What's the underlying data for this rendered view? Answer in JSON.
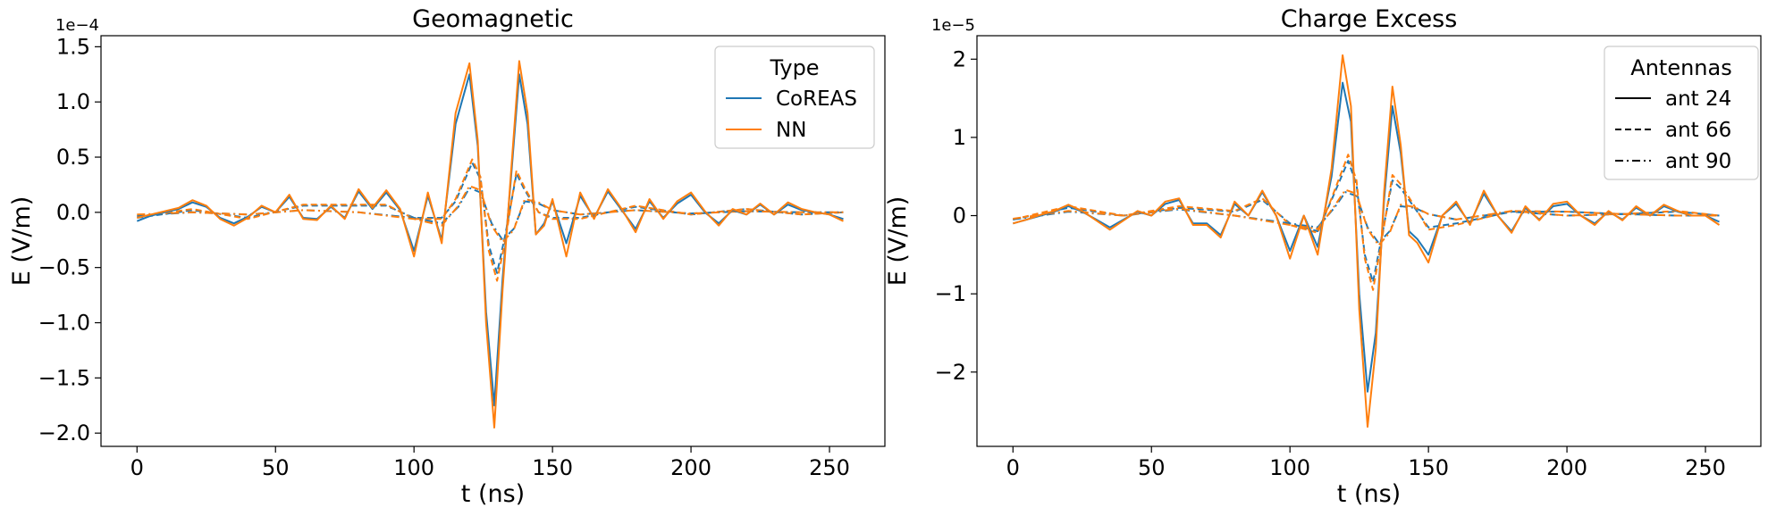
{
  "chart_data": [
    {
      "type": "line",
      "title": "Geomagnetic",
      "xlabel": "t (ns)",
      "ylabel": "E (V/m)",
      "y_scale_label": "1e−4",
      "y_scale": 0.0001,
      "xlim": [
        -13,
        270
      ],
      "ylim": [
        -2.12,
        1.6
      ],
      "xticks": [
        0,
        50,
        100,
        150,
        200,
        250
      ],
      "xtick_labels": [
        "0",
        "50",
        "100",
        "150",
        "200",
        "250"
      ],
      "yticks": [
        -2.0,
        -1.5,
        -1.0,
        -0.5,
        0.0,
        0.5,
        1.0,
        1.5
      ],
      "ytick_labels": [
        "−2.0",
        "−1.5",
        "−1.0",
        "−0.5",
        "0.0",
        "0.5",
        "1.0",
        "1.5"
      ],
      "grid": false,
      "legend": {
        "title": "Type",
        "placement": "top-right",
        "entries": [
          "CoREAS",
          "NN"
        ]
      },
      "series": [
        {
          "group": "CoREAS",
          "antenna": "ant 24",
          "style": "solid",
          "color": "#1f77b4",
          "x": [
            0,
            5,
            10,
            15,
            20,
            25,
            30,
            35,
            40,
            45,
            50,
            55,
            60,
            65,
            70,
            75,
            80,
            85,
            90,
            95,
            100,
            105,
            110,
            115,
            120,
            123,
            126,
            129,
            132,
            135,
            138,
            141,
            144,
            147,
            150,
            155,
            160,
            165,
            170,
            175,
            180,
            185,
            190,
            195,
            200,
            205,
            210,
            215,
            220,
            225,
            230,
            235,
            240,
            245,
            250,
            255
          ],
          "y": [
            -0.08,
            -0.03,
            0.0,
            0.03,
            0.09,
            0.05,
            -0.05,
            -0.1,
            -0.04,
            0.05,
            0.0,
            0.14,
            -0.05,
            -0.06,
            0.05,
            -0.05,
            0.19,
            0.03,
            0.18,
            0.02,
            -0.35,
            0.15,
            -0.25,
            0.8,
            1.25,
            0.6,
            -0.9,
            -1.75,
            -0.6,
            0.3,
            1.25,
            0.8,
            -0.2,
            -0.1,
            0.1,
            -0.28,
            0.15,
            -0.05,
            0.19,
            0.02,
            -0.15,
            0.1,
            -0.05,
            0.08,
            0.16,
            0.0,
            -0.1,
            0.02,
            -0.02,
            0.07,
            -0.02,
            0.07,
            0.02,
            0.0,
            -0.02,
            -0.06
          ]
        },
        {
          "group": "NN",
          "antenna": "ant 24",
          "style": "solid",
          "color": "#ff7f0e",
          "x": [
            0,
            5,
            10,
            15,
            20,
            25,
            30,
            35,
            40,
            45,
            50,
            55,
            60,
            65,
            70,
            75,
            80,
            85,
            90,
            95,
            100,
            105,
            110,
            115,
            120,
            123,
            126,
            129,
            132,
            135,
            138,
            141,
            144,
            147,
            150,
            155,
            160,
            165,
            170,
            175,
            180,
            185,
            190,
            195,
            200,
            205,
            210,
            215,
            220,
            225,
            230,
            235,
            240,
            245,
            250,
            255
          ],
          "y": [
            -0.05,
            -0.02,
            0.01,
            0.04,
            0.11,
            0.06,
            -0.06,
            -0.12,
            -0.05,
            0.06,
            0.0,
            0.16,
            -0.06,
            -0.07,
            0.06,
            -0.06,
            0.21,
            0.04,
            0.2,
            0.03,
            -0.4,
            0.18,
            -0.28,
            0.9,
            1.35,
            0.65,
            -1.0,
            -1.95,
            -0.7,
            0.35,
            1.37,
            0.9,
            -0.2,
            -0.12,
            0.12,
            -0.4,
            0.18,
            -0.06,
            0.21,
            0.03,
            -0.18,
            0.12,
            -0.06,
            0.1,
            0.18,
            0.01,
            -0.12,
            0.03,
            -0.02,
            0.08,
            -0.02,
            0.09,
            0.03,
            0.0,
            -0.02,
            -0.08
          ]
        },
        {
          "group": "CoREAS",
          "antenna": "ant 66",
          "style": "dashed",
          "color": "#1f77b4",
          "x": [
            0,
            20,
            40,
            60,
            80,
            90,
            100,
            110,
            115,
            121,
            124,
            127,
            130,
            133,
            137,
            140,
            145,
            150,
            160,
            180,
            200,
            220,
            240,
            255
          ],
          "y": [
            -0.05,
            0.02,
            -0.05,
            0.06,
            0.06,
            0.06,
            -0.05,
            -0.05,
            0.1,
            0.45,
            0.3,
            -0.3,
            -0.55,
            -0.2,
            0.35,
            0.2,
            0.0,
            -0.05,
            -0.05,
            0.05,
            -0.02,
            0.03,
            -0.02,
            0.0
          ]
        },
        {
          "group": "NN",
          "antenna": "ant 66",
          "style": "dashed",
          "color": "#ff7f0e",
          "x": [
            0,
            20,
            40,
            60,
            80,
            90,
            100,
            110,
            115,
            121,
            124,
            127,
            130,
            133,
            137,
            140,
            145,
            150,
            160,
            180,
            200,
            220,
            240,
            255
          ],
          "y": [
            -0.04,
            0.03,
            -0.06,
            0.07,
            0.07,
            0.07,
            -0.06,
            -0.06,
            0.12,
            0.48,
            0.32,
            -0.35,
            -0.62,
            -0.25,
            0.38,
            0.22,
            0.0,
            -0.06,
            -0.06,
            0.06,
            -0.02,
            0.03,
            -0.02,
            0.0
          ]
        },
        {
          "group": "CoREAS",
          "antenna": "ant 90",
          "style": "dashdot",
          "color": "#1f77b4",
          "x": [
            0,
            20,
            40,
            60,
            80,
            100,
            110,
            116,
            120,
            124,
            128,
            132,
            136,
            140,
            145,
            150,
            160,
            180,
            200,
            220,
            240,
            255
          ],
          "y": [
            -0.03,
            0.0,
            -0.02,
            0.02,
            0.0,
            -0.05,
            -0.1,
            0.05,
            0.22,
            0.18,
            -0.1,
            -0.25,
            -0.15,
            0.1,
            0.08,
            0.02,
            -0.02,
            0.02,
            -0.01,
            0.01,
            0.0,
            0.0
          ]
        },
        {
          "group": "NN",
          "antenna": "ant 90",
          "style": "dashdot",
          "color": "#ff7f0e",
          "x": [
            0,
            20,
            40,
            60,
            80,
            100,
            110,
            116,
            120,
            124,
            128,
            132,
            136,
            140,
            145,
            150,
            160,
            180,
            200,
            220,
            240,
            255
          ],
          "y": [
            -0.02,
            0.0,
            -0.02,
            0.02,
            0.0,
            -0.06,
            -0.12,
            0.06,
            0.24,
            0.2,
            -0.12,
            -0.27,
            -0.16,
            0.12,
            0.09,
            0.02,
            -0.02,
            0.02,
            -0.01,
            0.01,
            0.0,
            0.0
          ]
        }
      ]
    },
    {
      "type": "line",
      "title": "Charge Excess",
      "xlabel": "t (ns)",
      "ylabel": "E (V/m)",
      "y_scale_label": "1e−5",
      "y_scale": 1e-05,
      "xlim": [
        -13,
        270
      ],
      "ylim": [
        -2.95,
        2.3
      ],
      "xticks": [
        0,
        50,
        100,
        150,
        200,
        250
      ],
      "xtick_labels": [
        "0",
        "50",
        "100",
        "150",
        "200",
        "250"
      ],
      "yticks": [
        -2,
        -1,
        0,
        1,
        2
      ],
      "ytick_labels": [
        "−2",
        "−1",
        "0",
        "1",
        "2"
      ],
      "grid": false,
      "legend": {
        "title": "Antennas",
        "placement": "top-right",
        "entries": [
          "ant 24",
          "ant 66",
          "ant 90"
        ],
        "entry_styles": [
          "solid",
          "dashed",
          "dashdot"
        ]
      },
      "series": [
        {
          "group": "CoREAS",
          "antenna": "ant 24",
          "style": "solid",
          "color": "#1f77b4",
          "x": [
            0,
            5,
            10,
            15,
            20,
            25,
            30,
            35,
            40,
            45,
            50,
            55,
            60,
            65,
            70,
            75,
            80,
            85,
            90,
            95,
            100,
            105,
            110,
            115,
            119,
            122,
            125,
            128,
            131,
            134,
            137,
            140,
            143,
            146,
            150,
            155,
            160,
            165,
            170,
            175,
            180,
            185,
            190,
            195,
            200,
            205,
            210,
            215,
            220,
            225,
            230,
            235,
            240,
            245,
            250,
            255
          ],
          "y": [
            -0.1,
            -0.05,
            0.0,
            0.05,
            0.12,
            0.05,
            -0.05,
            -0.15,
            -0.05,
            0.05,
            0.0,
            0.15,
            0.2,
            -0.1,
            -0.1,
            -0.25,
            0.15,
            0.0,
            0.3,
            0.0,
            -0.45,
            0.0,
            -0.4,
            0.5,
            1.7,
            1.2,
            -1.0,
            -2.25,
            -1.5,
            0.2,
            1.4,
            0.8,
            -0.2,
            -0.3,
            -0.5,
            0.0,
            0.15,
            -0.1,
            0.28,
            0.0,
            -0.2,
            0.1,
            -0.05,
            0.12,
            0.15,
            0.0,
            -0.1,
            0.05,
            -0.05,
            0.1,
            0.0,
            0.12,
            0.05,
            0.0,
            0.0,
            -0.08
          ]
        },
        {
          "group": "NN",
          "antenna": "ant 24",
          "style": "solid",
          "color": "#ff7f0e",
          "x": [
            0,
            5,
            10,
            15,
            20,
            25,
            30,
            35,
            40,
            45,
            50,
            55,
            60,
            65,
            70,
            75,
            80,
            85,
            90,
            95,
            100,
            105,
            110,
            115,
            119,
            122,
            125,
            128,
            131,
            134,
            137,
            140,
            143,
            146,
            150,
            155,
            160,
            165,
            170,
            175,
            180,
            185,
            190,
            195,
            200,
            205,
            210,
            215,
            220,
            225,
            230,
            235,
            240,
            245,
            250,
            255
          ],
          "y": [
            -0.1,
            -0.05,
            0.01,
            0.06,
            0.14,
            0.06,
            -0.06,
            -0.18,
            -0.06,
            0.06,
            0.0,
            0.18,
            0.22,
            -0.12,
            -0.12,
            -0.28,
            0.18,
            0.0,
            0.32,
            0.0,
            -0.55,
            0.0,
            -0.5,
            0.6,
            2.05,
            1.4,
            -1.2,
            -2.7,
            -1.7,
            0.3,
            1.65,
            0.9,
            -0.25,
            -0.35,
            -0.6,
            0.0,
            0.18,
            -0.12,
            0.32,
            0.0,
            -0.22,
            0.12,
            -0.06,
            0.15,
            0.18,
            0.0,
            -0.12,
            0.06,
            -0.06,
            0.12,
            0.0,
            0.14,
            0.06,
            0.0,
            0.0,
            -0.12
          ]
        },
        {
          "group": "CoREAS",
          "antenna": "ant 66",
          "style": "dashed",
          "color": "#1f77b4",
          "x": [
            0,
            20,
            40,
            60,
            80,
            90,
            100,
            110,
            115,
            121,
            124,
            127,
            130,
            133,
            137,
            140,
            145,
            150,
            160,
            180,
            200,
            220,
            240,
            255
          ],
          "y": [
            -0.05,
            0.1,
            0.0,
            0.1,
            0.05,
            0.2,
            -0.1,
            -0.2,
            0.2,
            0.7,
            0.4,
            -0.5,
            -0.85,
            -0.3,
            0.45,
            0.35,
            0.1,
            -0.15,
            -0.1,
            0.05,
            0.05,
            0.02,
            0.05,
            0.0
          ]
        },
        {
          "group": "NN",
          "antenna": "ant 66",
          "style": "dashed",
          "color": "#ff7f0e",
          "x": [
            0,
            20,
            40,
            60,
            80,
            90,
            100,
            110,
            115,
            121,
            124,
            127,
            130,
            133,
            137,
            140,
            145,
            150,
            160,
            180,
            200,
            220,
            240,
            255
          ],
          "y": [
            -0.05,
            0.12,
            0.0,
            0.12,
            0.06,
            0.22,
            -0.12,
            -0.22,
            0.22,
            0.78,
            0.45,
            -0.55,
            -0.95,
            -0.35,
            0.52,
            0.4,
            0.12,
            -0.18,
            -0.12,
            0.06,
            0.05,
            0.02,
            0.06,
            0.0
          ]
        },
        {
          "group": "CoREAS",
          "antenna": "ant 90",
          "style": "dashdot",
          "color": "#1f77b4",
          "x": [
            0,
            20,
            40,
            60,
            80,
            100,
            110,
            116,
            120,
            124,
            128,
            132,
            136,
            140,
            145,
            150,
            160,
            180,
            200,
            220,
            240,
            255
          ],
          "y": [
            -0.05,
            0.05,
            0.0,
            0.08,
            0.0,
            -0.1,
            -0.15,
            0.1,
            0.3,
            0.25,
            -0.15,
            -0.35,
            -0.2,
            0.12,
            0.1,
            0.02,
            -0.05,
            0.05,
            0.0,
            0.02,
            0.0,
            0.0
          ]
        },
        {
          "group": "NN",
          "antenna": "ant 90",
          "style": "dashdot",
          "color": "#ff7f0e",
          "x": [
            0,
            20,
            40,
            60,
            80,
            100,
            110,
            116,
            120,
            124,
            128,
            132,
            136,
            140,
            145,
            150,
            160,
            180,
            200,
            220,
            240,
            255
          ],
          "y": [
            -0.04,
            0.06,
            0.0,
            0.09,
            0.0,
            -0.12,
            -0.17,
            0.12,
            0.33,
            0.28,
            -0.17,
            -0.38,
            -0.22,
            0.14,
            0.11,
            0.02,
            -0.05,
            0.06,
            0.0,
            0.02,
            0.0,
            0.0
          ]
        }
      ]
    }
  ]
}
